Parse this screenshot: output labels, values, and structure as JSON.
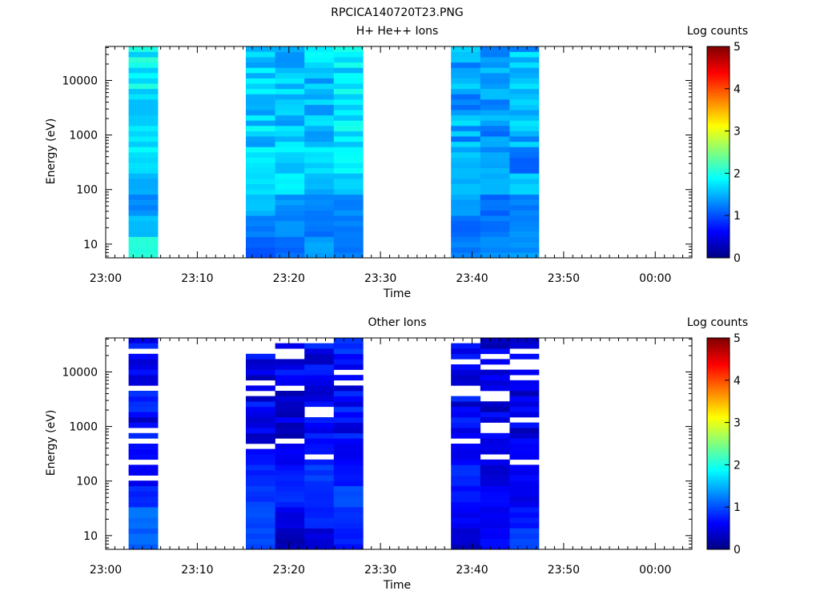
{
  "figure_title": "RPCICA140720T23.PNG",
  "chart_data": [
    {
      "type": "heatmap",
      "title": "H+ He++ Ions",
      "xlabel": "Time",
      "ylabel": "Energy (eV)",
      "colorbar_label": "Log counts",
      "y_scale": "log",
      "ylim": [
        5.6,
        42000
      ],
      "x_ticks": [
        "23:00",
        "23:10",
        "23:20",
        "23:30",
        "23:40",
        "23:50",
        "00:00"
      ],
      "x_range_minutes": [
        0,
        64
      ],
      "y_ticks": [
        "10",
        "100",
        "1000",
        "10000"
      ],
      "y_tick_values": [
        10,
        100,
        1000,
        10000
      ],
      "colorbar_ticks": [
        "0",
        "1",
        "2",
        "3",
        "4",
        "5"
      ],
      "colorbar_range": [
        0,
        5
      ],
      "columns": [
        {
          "start_min": 2.5,
          "end_min": 5.7,
          "base": 1.85,
          "low": [
            2.1,
            1.6,
            1.3,
            1.5,
            1.7
          ]
        },
        {
          "start_min": 15.3,
          "end_min": 18.5,
          "base": 1.65,
          "low": [
            1.05,
            1.25,
            1.55,
            1.7,
            1.8
          ]
        },
        {
          "start_min": 18.5,
          "end_min": 21.7,
          "base": 1.55,
          "low": [
            1.15,
            1.3,
            1.35,
            1.8,
            1.6
          ]
        },
        {
          "start_min": 21.7,
          "end_min": 24.9,
          "base": 1.6,
          "low": [
            1.4,
            1.2,
            1.25,
            1.5,
            1.7
          ]
        },
        {
          "start_min": 24.9,
          "end_min": 28.1,
          "base": 1.75,
          "low": [
            1.2,
            1.25,
            1.3,
            1.6,
            1.85
          ]
        },
        {
          "start_min": 37.7,
          "end_min": 40.9,
          "base": 1.45,
          "low": [
            1.25,
            1.15,
            1.4,
            1.5,
            1.55
          ]
        },
        {
          "start_min": 40.9,
          "end_min": 44.1,
          "base": 1.4,
          "low": [
            1.3,
            1.2,
            1.15,
            1.45,
            1.5
          ]
        },
        {
          "start_min": 44.1,
          "end_min": 47.3,
          "base": 1.5,
          "low": [
            1.35,
            1.3,
            1.25,
            1.6,
            1.1
          ]
        }
      ]
    },
    {
      "type": "heatmap",
      "title": "Other Ions",
      "xlabel": "Time",
      "ylabel": "Energy (eV)",
      "colorbar_label": "Log counts",
      "y_scale": "log",
      "ylim": [
        5.6,
        42000
      ],
      "x_ticks": [
        "23:00",
        "23:10",
        "23:20",
        "23:30",
        "23:40",
        "23:50",
        "00:00"
      ],
      "x_range_minutes": [
        0,
        64
      ],
      "y_ticks": [
        "10",
        "100",
        "1000",
        "10000"
      ],
      "y_tick_values": [
        10,
        100,
        1000,
        10000
      ],
      "colorbar_ticks": [
        "0",
        "1",
        "2",
        "3",
        "4",
        "5"
      ],
      "colorbar_range": [
        0,
        5
      ],
      "columns": [
        {
          "start_min": 2.5,
          "end_min": 5.7,
          "base": 0.6,
          "low": [
            1.1,
            1.2,
            0.8,
            0.55,
            0.6
          ]
        },
        {
          "start_min": 15.3,
          "end_min": 18.5,
          "base": 0.55,
          "low": [
            1.0,
            0.95,
            0.9,
            0.8,
            0.7
          ]
        },
        {
          "start_min": 18.5,
          "end_min": 21.7,
          "base": 0.5,
          "low": [
            0.25,
            0.5,
            0.85,
            0.75,
            0.55
          ]
        },
        {
          "start_min": 21.7,
          "end_min": 24.9,
          "base": 0.6,
          "low": [
            0.45,
            0.8,
            0.85,
            0.9,
            0.7
          ]
        },
        {
          "start_min": 24.9,
          "end_min": 28.1,
          "base": 0.65,
          "low": [
            0.75,
            0.85,
            1.0,
            0.7,
            0.6
          ]
        },
        {
          "start_min": 37.7,
          "end_min": 40.9,
          "base": 0.55,
          "low": [
            0.35,
            0.6,
            0.7,
            0.8,
            0.6
          ]
        },
        {
          "start_min": 40.9,
          "end_min": 44.1,
          "base": 0.5,
          "low": [
            0.65,
            0.55,
            0.6,
            0.45,
            0.5
          ]
        },
        {
          "start_min": 44.1,
          "end_min": 47.3,
          "base": 0.55,
          "low": [
            0.95,
            0.7,
            0.5,
            0.6,
            0.55
          ]
        }
      ]
    }
  ]
}
